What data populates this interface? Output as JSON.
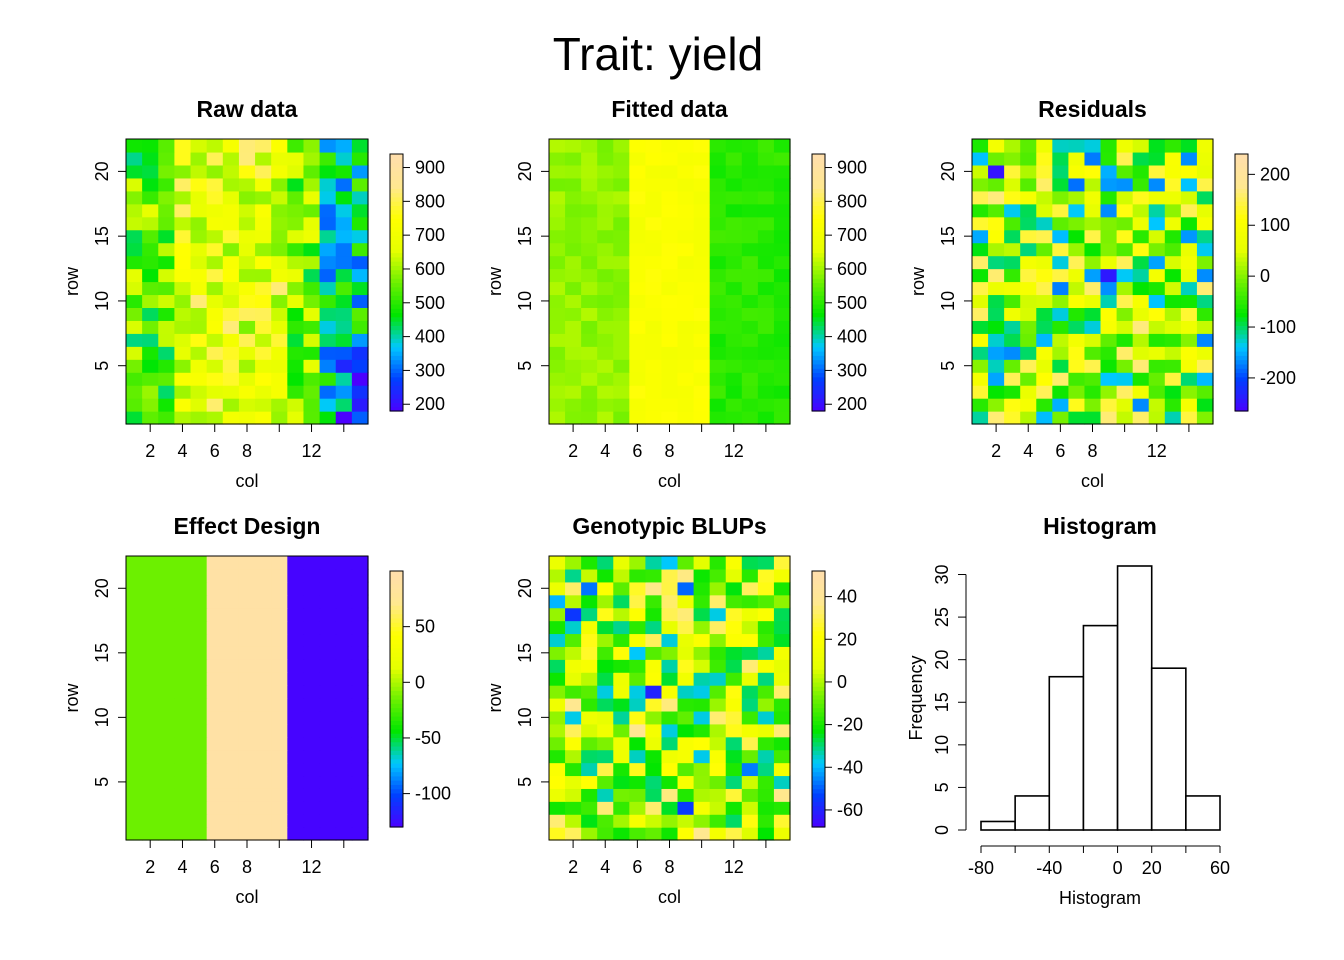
{
  "figure": {
    "suptitle": "Trait: yield"
  },
  "palette": {
    "stops": [
      "#4B00FF",
      "#0040FF",
      "#00C8FF",
      "#00E600",
      "#6CF000",
      "#E6FF00",
      "#FFFF00",
      "#FFE890",
      "#FFDEAD"
    ]
  },
  "chart_data": [
    {
      "type": "heatmap",
      "title": "Raw data",
      "xlabel": "col",
      "ylabel": "row",
      "ncol": 15,
      "nrow": 22,
      "xticks": [
        2,
        4,
        6,
        8,
        12
      ],
      "yticks": [
        5,
        10,
        15,
        20
      ],
      "colorbar": {
        "min": 180,
        "max": 940,
        "ticks": [
          200,
          300,
          400,
          500,
          600,
          700,
          800,
          900
        ]
      },
      "pattern": "raw",
      "seed": 11
    },
    {
      "type": "heatmap",
      "title": "Fitted data",
      "xlabel": "col",
      "ylabel": "row",
      "ncol": 15,
      "nrow": 22,
      "xticks": [
        2,
        4,
        6,
        8,
        12
      ],
      "yticks": [
        5,
        10,
        15,
        20
      ],
      "colorbar": {
        "min": 180,
        "max": 940,
        "ticks": [
          200,
          300,
          400,
          500,
          600,
          700,
          800,
          900
        ]
      },
      "pattern": "fitted",
      "seed": 23
    },
    {
      "type": "heatmap",
      "title": "Residuals",
      "xlabel": "col",
      "ylabel": "row",
      "ncol": 15,
      "nrow": 22,
      "xticks": [
        2,
        4,
        6,
        8,
        12
      ],
      "yticks": [
        5,
        10,
        15,
        20
      ],
      "colorbar": {
        "min": -265,
        "max": 240,
        "ticks": [
          -200,
          -100,
          0,
          100,
          200
        ]
      },
      "pattern": "resid",
      "seed": 37
    },
    {
      "type": "heatmap",
      "title": "Effect Design",
      "xlabel": "col",
      "ylabel": "row",
      "ncol": 15,
      "nrow": 22,
      "xticks": [
        2,
        4,
        6,
        8,
        12
      ],
      "yticks": [
        5,
        10,
        15,
        20
      ],
      "colorbar": {
        "min": -130,
        "max": 100,
        "ticks": [
          -100,
          -50,
          0,
          50
        ]
      },
      "pattern": "blocks",
      "blocks": [
        {
          "from_col": 1,
          "to_col": 5,
          "value": -15
        },
        {
          "from_col": 6,
          "to_col": 10,
          "value": 92
        },
        {
          "from_col": 11,
          "to_col": 15,
          "value": -128
        }
      ],
      "seed": 0
    },
    {
      "type": "heatmap",
      "title": "Genotypic BLUPs",
      "xlabel": "col",
      "ylabel": "row",
      "ncol": 15,
      "nrow": 22,
      "xticks": [
        2,
        4,
        6,
        8,
        12
      ],
      "yticks": [
        5,
        10,
        15,
        20
      ],
      "colorbar": {
        "min": -68,
        "max": 52,
        "ticks": [
          -60,
          -40,
          -20,
          0,
          20,
          40
        ]
      },
      "pattern": "blup",
      "seed": 53
    },
    {
      "type": "bar",
      "title": "Histogram",
      "xlabel": "Histogram",
      "ylabel": "Frequency",
      "bin_edges": [
        -80,
        -60,
        -40,
        -20,
        0,
        20,
        40,
        60
      ],
      "counts": [
        1,
        4,
        18,
        24,
        31,
        19,
        4
      ],
      "xticks": [
        -80,
        -40,
        0,
        20,
        60
      ],
      "yticks": [
        0,
        5,
        10,
        15,
        20,
        25,
        30
      ],
      "xlim": [
        -80,
        60
      ],
      "ylim": [
        0,
        31
      ]
    }
  ]
}
